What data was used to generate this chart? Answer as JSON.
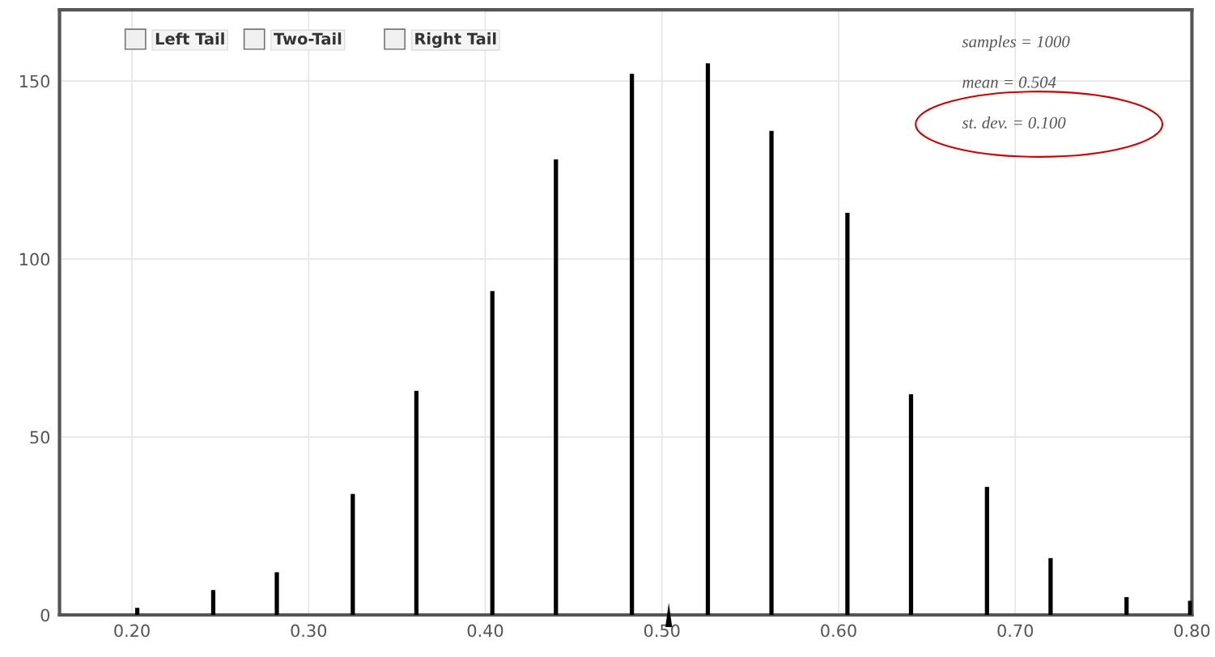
{
  "chart_data": {
    "type": "bar",
    "x": [
      0.203,
      0.246,
      0.282,
      0.325,
      0.361,
      0.404,
      0.44,
      0.483,
      0.526,
      0.562,
      0.605,
      0.641,
      0.684,
      0.72,
      0.763,
      0.799
    ],
    "values": [
      2,
      7,
      12,
      34,
      63,
      91,
      128,
      152,
      155,
      136,
      113,
      62,
      36,
      16,
      5,
      4
    ],
    "color": "#000000",
    "xlim": [
      0.159,
      0.8
    ],
    "xticks": [
      {
        "value": 0.2,
        "label": "0.20"
      },
      {
        "value": 0.3,
        "label": "0.30"
      },
      {
        "value": 0.4,
        "label": "0.40"
      },
      {
        "value": 0.5,
        "label": "0.50"
      },
      {
        "value": 0.6,
        "label": "0.60"
      },
      {
        "value": 0.7,
        "label": "0.70"
      },
      {
        "value": 0.8,
        "label": "0.80"
      }
    ],
    "ylim": [
      0,
      170
    ],
    "yticks": [
      0,
      50,
      100,
      150
    ],
    "grid": true,
    "annotations": [
      "Left Tail",
      "Two-Tail",
      "Right Tail",
      "samples = 1000",
      "mean = 0.504",
      "st. dev. = 0.100"
    ]
  }
}
